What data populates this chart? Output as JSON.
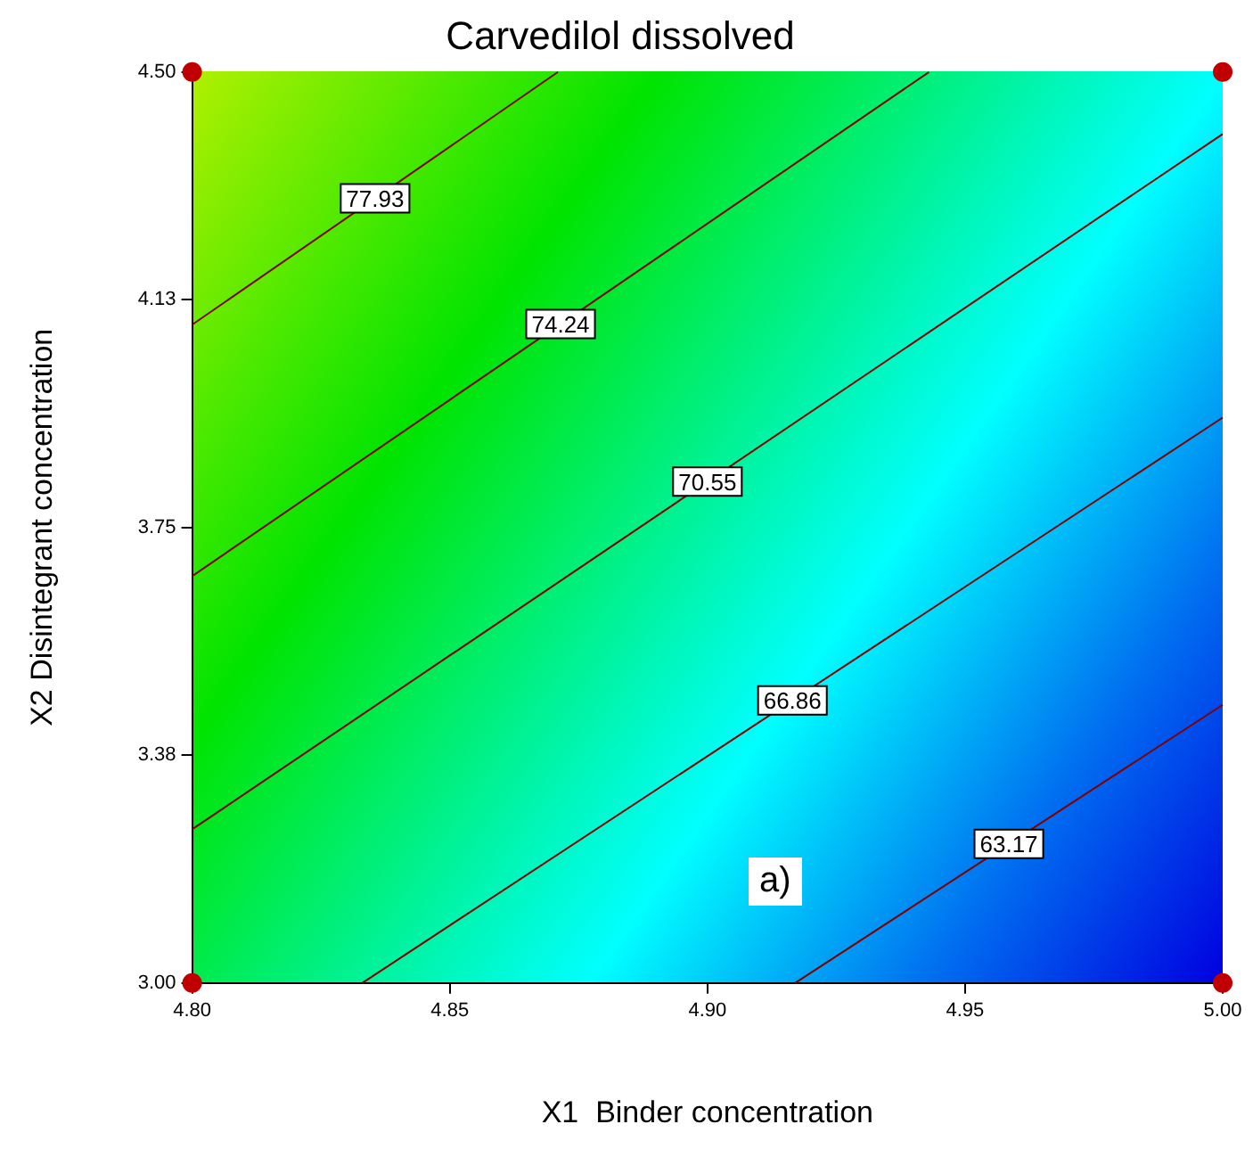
{
  "chart_data": {
    "type": "line",
    "title": "Carvedilol dissolved",
    "xlabel": "X1  Binder concentration",
    "ylabel": "X2 Disintegrant concentration",
    "xlim": [
      4.8,
      5.0
    ],
    "xticks": [
      {
        "value": 4.8,
        "label": "4.80"
      },
      {
        "value": 4.85,
        "label": "4.85"
      },
      {
        "value": 4.9,
        "label": "4.90"
      },
      {
        "value": 4.95,
        "label": "4.95"
      },
      {
        "value": 5.0,
        "label": "5.00"
      }
    ],
    "ylim": [
      3.0,
      4.5
    ],
    "yticks": [
      {
        "value": 3.0,
        "label": "3.00"
      },
      {
        "value": 3.375,
        "label": "3.38"
      },
      {
        "value": 3.75,
        "label": "3.75"
      },
      {
        "value": 4.125,
        "label": "4.13"
      },
      {
        "value": 4.5,
        "label": "4.50"
      }
    ],
    "grid": false,
    "legend": false,
    "line_style": "solid",
    "annotations": [
      "a)"
    ],
    "series": [
      {
        "name": "77.93",
        "color": "#800000",
        "marker": "none",
        "x": [
          4.8,
          4.871
        ],
        "values": [
          4.084,
          4.5
        ]
      },
      {
        "name": "74.24",
        "color": "#800000",
        "marker": "none",
        "x": [
          4.8,
          4.943
        ],
        "values": [
          3.67,
          4.5
        ]
      },
      {
        "name": "70.55",
        "color": "#800000",
        "marker": "none",
        "x": [
          4.8,
          5.0
        ],
        "values": [
          3.253,
          4.398
        ]
      },
      {
        "name": "66.86",
        "color": "#800000",
        "marker": "none",
        "x": [
          4.833,
          5.0
        ],
        "values": [
          3.0,
          3.931
        ]
      },
      {
        "name": "63.17",
        "color": "#800000",
        "marker": "none",
        "x": [
          4.917,
          5.0
        ],
        "values": [
          3.0,
          3.458
        ]
      },
      {
        "type": "scatter",
        "color": "#c00000",
        "marker": "circle",
        "x": [
          4.8,
          4.8,
          5.0,
          5.0
        ],
        "values": [
          3.0,
          4.5,
          3.0,
          4.5
        ]
      }
    ]
  }
}
